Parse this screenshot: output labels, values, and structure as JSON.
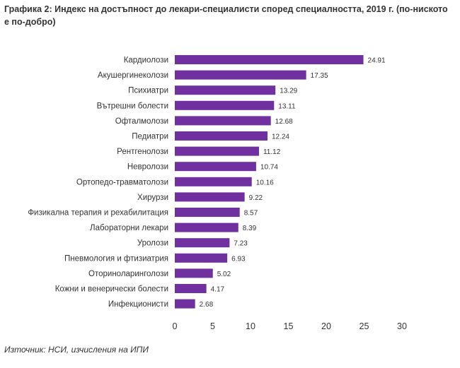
{
  "title": "Графика 2: Индекс на достъпност до лекари-специалисти според специалността, 2019 г. (по-ниското е по-добро)",
  "source": "Източник: НСИ, изчисления на ИПИ",
  "chart_data": {
    "type": "bar",
    "orientation": "horizontal",
    "categories": [
      "Кардиолози",
      "Акушергинеколози",
      "Психиатри",
      "Вътрешни болести",
      "Офталмолози",
      "Педиатри",
      "Рентгенолози",
      "Невролози",
      "Ортопедо-травматолози",
      "Хирурзи",
      "Физикална терапия и рехабилитация",
      "Лабораторни лекари",
      "Уролози",
      "Пневмология и фтизиатрия",
      "Оториноларинголози",
      "Кожни и венерически болести",
      "Инфекционисти"
    ],
    "values": [
      24.91,
      17.35,
      13.29,
      13.11,
      12.68,
      12.24,
      11.12,
      10.74,
      10.16,
      9.22,
      8.57,
      8.39,
      7.23,
      6.93,
      5.02,
      4.17,
      2.68
    ],
    "value_labels": [
      "24.91",
      "17.35",
      "13.29",
      "13.11",
      "12.68",
      "12.24",
      "11.12",
      "10.74",
      "10.16",
      "9.22",
      "8.57",
      "8.39",
      "7.23",
      "6.93",
      "5.02",
      "4.17",
      "2.68"
    ],
    "xlim": [
      0,
      30
    ],
    "xticks": [
      "0",
      "5",
      "10",
      "15",
      "20",
      "25",
      "30"
    ],
    "xlabel": "",
    "ylabel": "",
    "grid": false,
    "legend": "none",
    "bar_color": "#7030a0"
  }
}
